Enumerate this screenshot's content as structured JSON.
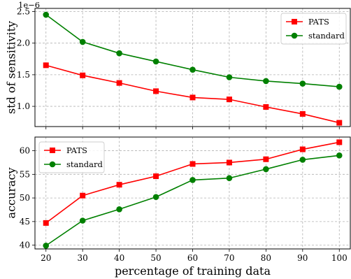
{
  "chart_data": [
    {
      "type": "line",
      "xlabel": "",
      "ylabel": "std of sensitivity",
      "y_offset_label": "1e−6",
      "x": [
        20,
        30,
        40,
        50,
        60,
        70,
        80,
        90,
        100
      ],
      "xlim": [
        17,
        103
      ],
      "ylim": [
        0.68,
        2.55
      ],
      "yticks": [
        1.0,
        1.5,
        2.0,
        2.5
      ],
      "ytick_labels": [
        "1.0",
        "1.5",
        "2.0",
        "2.5"
      ],
      "grid": true,
      "legend_position": "upper right",
      "series": [
        {
          "name": "PATS",
          "color": "#ff0000",
          "marker": "square",
          "values": [
            1.65,
            1.49,
            1.37,
            1.24,
            1.14,
            1.11,
            0.99,
            0.88,
            0.74
          ]
        },
        {
          "name": "standard",
          "color": "#008000",
          "marker": "circle",
          "values": [
            2.45,
            2.02,
            1.84,
            1.71,
            1.58,
            1.46,
            1.4,
            1.36,
            1.31
          ]
        }
      ]
    },
    {
      "type": "line",
      "xlabel": "percentage of training data",
      "ylabel": "accuracy",
      "x": [
        20,
        30,
        40,
        50,
        60,
        70,
        80,
        90,
        100
      ],
      "xticks": [
        20,
        30,
        40,
        50,
        60,
        70,
        80,
        90,
        100
      ],
      "xtick_labels": [
        "20",
        "30",
        "40",
        "50",
        "60",
        "70",
        "80",
        "90",
        "100"
      ],
      "xlim": [
        17,
        103
      ],
      "ylim": [
        39.2,
        62.9
      ],
      "yticks": [
        40,
        45,
        50,
        55,
        60
      ],
      "ytick_labels": [
        "40",
        "45",
        "50",
        "55",
        "60"
      ],
      "grid": true,
      "legend_position": "upper left",
      "series": [
        {
          "name": "PATS",
          "color": "#ff0000",
          "marker": "square",
          "values": [
            44.7,
            50.5,
            52.8,
            54.6,
            57.2,
            57.5,
            58.2,
            60.3,
            61.8
          ]
        },
        {
          "name": "standard",
          "color": "#008000",
          "marker": "circle",
          "values": [
            39.9,
            45.2,
            47.6,
            50.2,
            53.8,
            54.2,
            56.1,
            58.1,
            59.0
          ]
        }
      ]
    }
  ]
}
